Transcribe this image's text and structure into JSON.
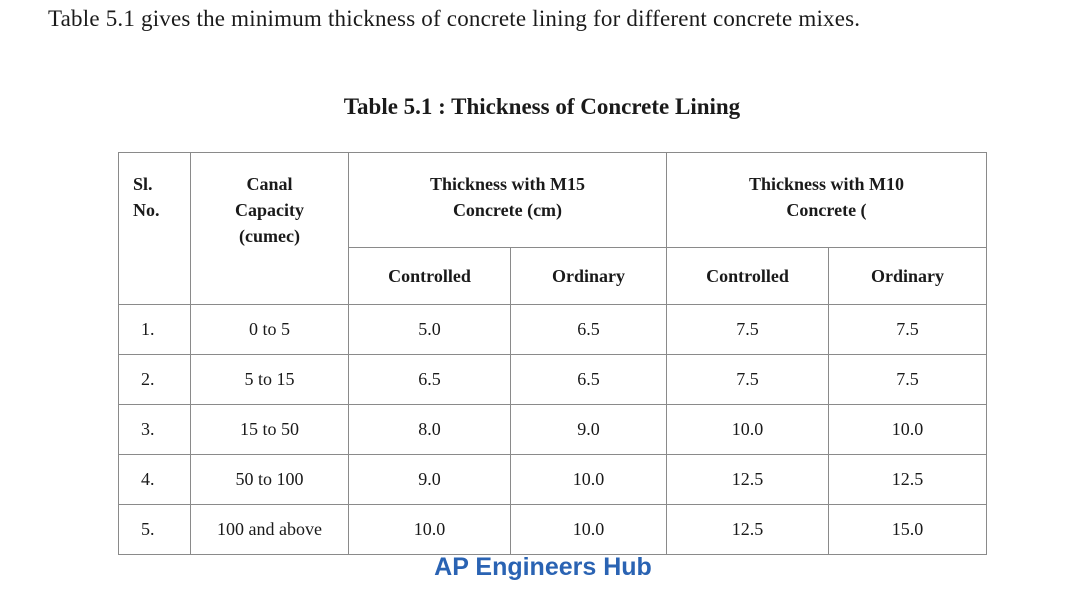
{
  "intro": "Table 5.1 gives the minimum thickness of concrete lining for different concrete mixes.",
  "table": {
    "title": "Table 5.1 : Thickness of Concrete Lining",
    "headers": [
      "Sl.\nNo.",
      "Canal\nCapacity\n(cumec)",
      "Thickness with M15\nConcrete (cm)",
      "Thickness with M10\nConcrete ("
    ],
    "subheaders": [
      "Controlled",
      "Ordinary",
      "Controlled",
      "Ordinary"
    ],
    "rows": [
      [
        "1.",
        "0 to 5",
        "5.0",
        "6.5",
        "7.5",
        "7.5"
      ],
      [
        "2.",
        "5 to 15",
        "6.5",
        "6.5",
        "7.5",
        "7.5"
      ],
      [
        "3.",
        "15 to 50",
        "8.0",
        "9.0",
        "10.0",
        "10.0"
      ],
      [
        "4.",
        "50 to 100",
        "9.0",
        "10.0",
        "12.5",
        "12.5"
      ],
      [
        "5.",
        "100 and above",
        "10.0",
        "10.0",
        "12.5",
        "15.0"
      ]
    ]
  },
  "watermark": "AP Engineers Hub"
}
